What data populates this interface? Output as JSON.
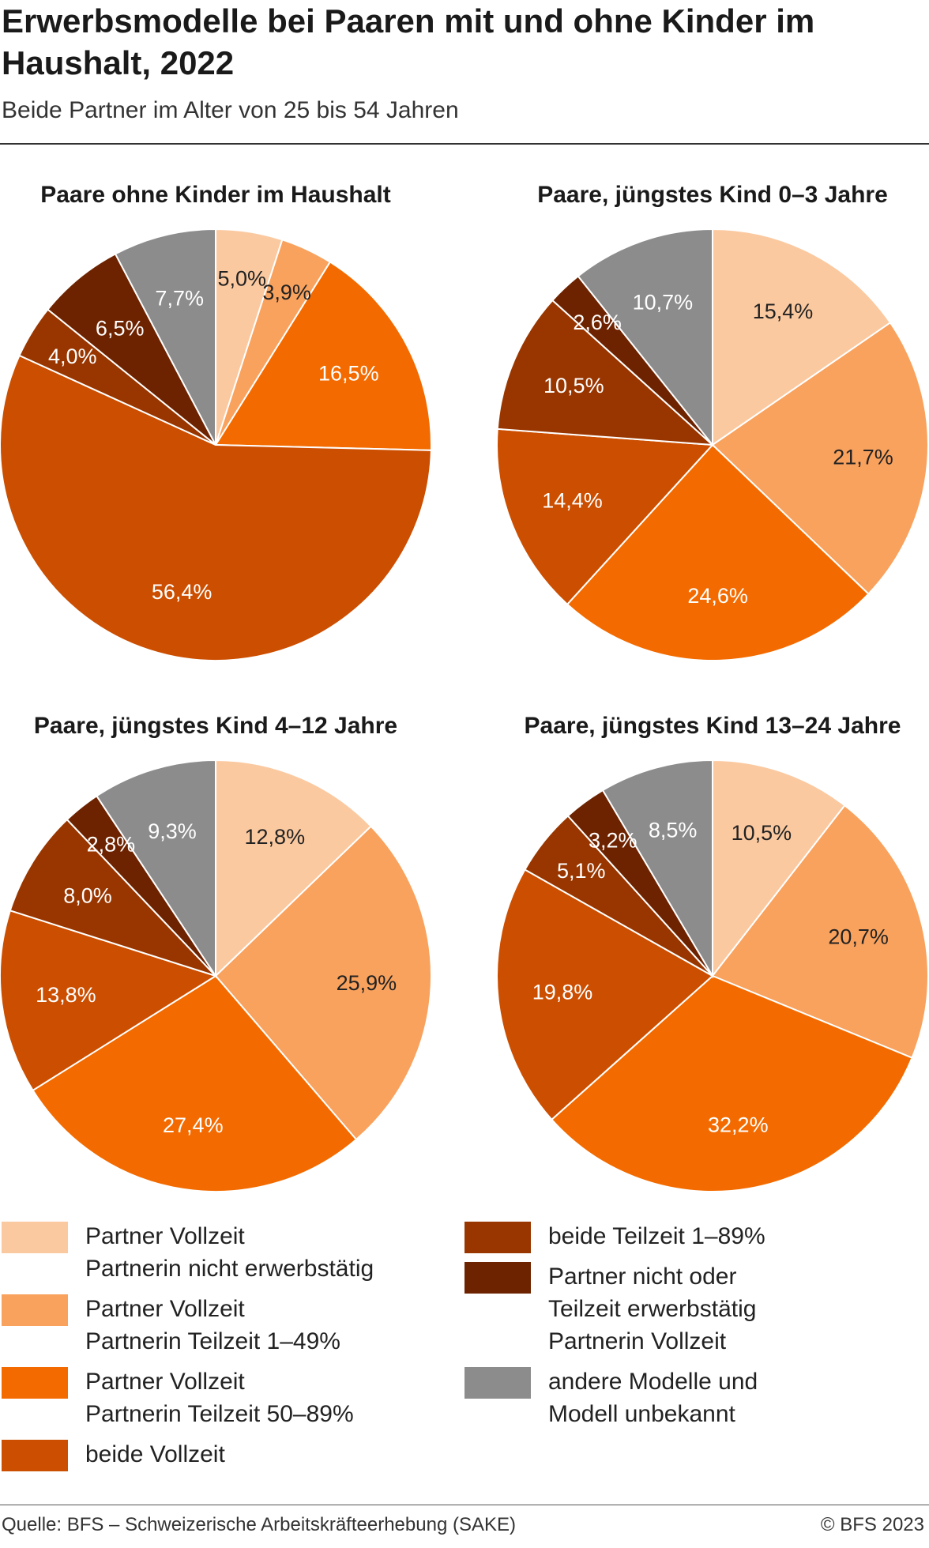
{
  "header": {
    "title": "Erwerbsmodelle bei Paaren mit und ohne Kinder im Haushalt, 2022",
    "subtitle": "Beide Partner im Alter von 25 bis 54 Jahren"
  },
  "legend": [
    {
      "label": "Partner Vollzeit\nPartnerin nicht erwerbstätig",
      "color": "#fbc9a0"
    },
    {
      "label": "Partner Vollzeit\nPartnerin Teilzeit 1–49%",
      "color": "#f9a25e"
    },
    {
      "label": "Partner Vollzeit\nPartnerin Teilzeit 50–89%",
      "color": "#f36b00"
    },
    {
      "label": "beide Vollzeit",
      "color": "#cc4e00"
    },
    {
      "label": "beide Teilzeit 1–89%",
      "color": "#993600"
    },
    {
      "label": "Partner nicht oder\nTeilzeit erwerbstätig\nPartnerin Vollzeit",
      "color": "#6e2300"
    },
    {
      "label": "andere Modelle und\nModell unbekannt",
      "color": "#8c8c8c"
    }
  ],
  "chart_data": [
    {
      "type": "pie",
      "title": "Paare ohne Kinder im Haushalt",
      "categories": [
        "Partner Vollzeit / Partnerin nicht erwerbstätig",
        "Partner Vollzeit / Partnerin Teilzeit 1–49%",
        "Partner Vollzeit / Partnerin Teilzeit 50–89%",
        "beide Vollzeit",
        "beide Teilzeit 1–89%",
        "Partner nicht oder Teilzeit erwerbstätig / Partnerin Vollzeit",
        "andere Modelle und Modell unbekannt"
      ],
      "values": [
        5.0,
        3.9,
        16.5,
        56.4,
        4.0,
        6.5,
        7.7
      ],
      "labels": [
        "5,0%",
        "3,9%",
        "16,5%",
        "56,4%",
        "4,0%",
        "6,5%",
        "7,7%"
      ]
    },
    {
      "type": "pie",
      "title": "Paare, jüngstes Kind 0–3 Jahre",
      "categories": [
        "Partner Vollzeit / Partnerin nicht erwerbstätig",
        "Partner Vollzeit / Partnerin Teilzeit 1–49%",
        "Partner Vollzeit / Partnerin Teilzeit 50–89%",
        "beide Vollzeit",
        "beide Teilzeit 1–89%",
        "Partner nicht oder Teilzeit erwerbstätig / Partnerin Vollzeit",
        "andere Modelle und Modell unbekannt"
      ],
      "values": [
        15.4,
        21.7,
        24.6,
        14.4,
        10.5,
        2.6,
        10.7
      ],
      "labels": [
        "15,4%",
        "21,7%",
        "24,6%",
        "14,4%",
        "10,5%",
        "2,6%",
        "10,7%"
      ]
    },
    {
      "type": "pie",
      "title": "Paare, jüngstes Kind 4–12 Jahre",
      "categories": [
        "Partner Vollzeit / Partnerin nicht erwerbstätig",
        "Partner Vollzeit / Partnerin Teilzeit 1–49%",
        "Partner Vollzeit / Partnerin Teilzeit 50–89%",
        "beide Vollzeit",
        "beide Teilzeit 1–89%",
        "Partner nicht oder Teilzeit erwerbstätig / Partnerin Vollzeit",
        "andere Modelle und Modell unbekannt"
      ],
      "values": [
        12.8,
        25.9,
        27.4,
        13.8,
        8.0,
        2.8,
        9.3
      ],
      "labels": [
        "12,8%",
        "25,9%",
        "27,4%",
        "13,8%",
        "8,0%",
        "2,8%",
        "9,3%"
      ]
    },
    {
      "type": "pie",
      "title": "Paare, jüngstes Kind 13–24 Jahre",
      "categories": [
        "Partner Vollzeit / Partnerin nicht erwerbstätig",
        "Partner Vollzeit / Partnerin Teilzeit 1–49%",
        "Partner Vollzeit / Partnerin Teilzeit 50–89%",
        "beide Vollzeit",
        "beide Teilzeit 1–89%",
        "Partner nicht oder Teilzeit erwerbstätig / Partnerin Vollzeit",
        "andere Modelle und Modell unbekannt"
      ],
      "values": [
        10.5,
        20.7,
        32.2,
        19.8,
        5.1,
        3.2,
        8.5
      ],
      "labels": [
        "10,5%",
        "20,7%",
        "32,2%",
        "19,8%",
        "5,1%",
        "3,2%",
        "8,5%"
      ]
    }
  ],
  "footer": {
    "source": "Quelle: BFS – Schweizerische Arbeitskräfteerhebung (SAKE)",
    "copyright": "© BFS 2023"
  }
}
